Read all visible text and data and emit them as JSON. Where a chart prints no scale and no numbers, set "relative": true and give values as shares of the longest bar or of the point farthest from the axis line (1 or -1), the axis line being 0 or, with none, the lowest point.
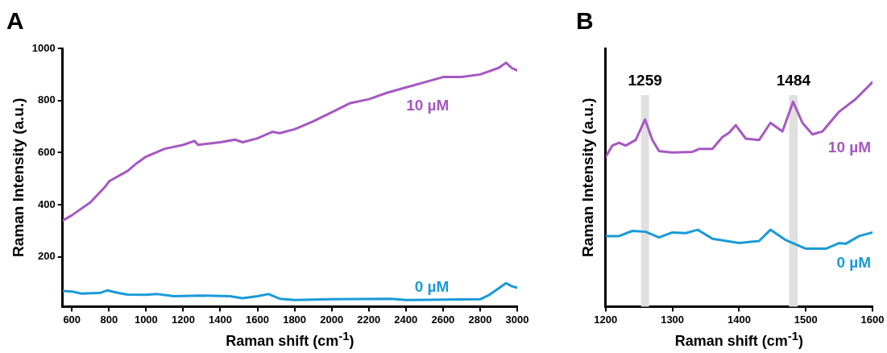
{
  "chart_data": [
    {
      "type": "line",
      "title": "A",
      "xlabel": "Raman shift (cm$^{-1}$)",
      "ylabel": "Raman Intensity (a.u.)",
      "xlim": [
        550,
        3000
      ],
      "xticks": [
        600,
        800,
        1000,
        1200,
        1400,
        1600,
        1800,
        2000,
        2200,
        2400,
        2600,
        2800,
        3000
      ],
      "ylim": [
        10,
        1000
      ],
      "yticks": [
        200,
        400,
        600,
        800,
        1000
      ],
      "grid": false,
      "legend": false,
      "marker": "none",
      "line_style": "solid",
      "series": [
        {
          "name": "10 µM",
          "color": "#a658c2",
          "x": [
            550,
            600,
            700,
            780,
            800,
            900,
            950,
            1000,
            1100,
            1200,
            1260,
            1280,
            1400,
            1480,
            1520,
            1600,
            1680,
            1720,
            1800,
            1900,
            2000,
            2100,
            2200,
            2300,
            2400,
            2500,
            2600,
            2700,
            2800,
            2900,
            2940,
            2970,
            3000
          ],
          "values": [
            340,
            360,
            410,
            470,
            490,
            530,
            560,
            585,
            615,
            630,
            645,
            630,
            640,
            650,
            640,
            655,
            680,
            675,
            690,
            720,
            755,
            790,
            805,
            830,
            850,
            870,
            890,
            890,
            900,
            925,
            945,
            925,
            915
          ]
        },
        {
          "name": "0 µM",
          "color": "#1a9ad8",
          "x": [
            550,
            600,
            650,
            750,
            790,
            850,
            900,
            1000,
            1060,
            1150,
            1300,
            1450,
            1520,
            1600,
            1660,
            1720,
            1800,
            2000,
            2320,
            2400,
            2800,
            2850,
            2900,
            2940,
            2970,
            3000
          ],
          "values": [
            70,
            68,
            60,
            62,
            72,
            62,
            56,
            55,
            58,
            50,
            52,
            50,
            42,
            50,
            58,
            40,
            35,
            38,
            40,
            35,
            38,
            55,
            80,
            100,
            88,
            82
          ]
        }
      ]
    },
    {
      "type": "line",
      "title": "B",
      "xlabel": "Raman shift (cm$^{-1}$)",
      "ylabel": "Raman Intensity (a.u.)",
      "relative": true,
      "xlim": [
        1200,
        1600
      ],
      "xticks": [
        1200,
        1300,
        1400,
        1500,
        1600
      ],
      "grid": false,
      "legend": false,
      "marker": "none",
      "line_style": "solid",
      "bands": [
        {
          "axis": "x",
          "from": 1253,
          "to": 1265,
          "label": "1259",
          "color": "#e0e0e0"
        },
        {
          "axis": "x",
          "from": 1475,
          "to": 1488,
          "label": "1484",
          "color": "#e0e0e0"
        }
      ],
      "series": [
        {
          "name": "10 µM",
          "color": "#a658c2",
          "x": [
            1200,
            1210,
            1220,
            1230,
            1245,
            1259,
            1270,
            1280,
            1300,
            1330,
            1340,
            1360,
            1375,
            1385,
            1395,
            1410,
            1430,
            1447,
            1465,
            1481,
            1495,
            1510,
            1525,
            1550,
            1575,
            1600
          ],
          "values": [
            0.667,
            0.717,
            0.73,
            0.717,
            0.742,
            0.833,
            0.742,
            0.692,
            0.686,
            0.689,
            0.702,
            0.702,
            0.755,
            0.774,
            0.808,
            0.748,
            0.742,
            0.818,
            0.78,
            0.912,
            0.818,
            0.767,
            0.78,
            0.868,
            0.925,
            1
          ]
        },
        {
          "name": "0 µM",
          "color": "#1a9ad8",
          "x": [
            1200,
            1220,
            1240,
            1260,
            1280,
            1300,
            1320,
            1338,
            1360,
            1400,
            1430,
            1447,
            1470,
            1500,
            1530,
            1550,
            1560,
            1580,
            1600
          ],
          "values": [
            0.314,
            0.314,
            0.337,
            0.333,
            0.308,
            0.33,
            0.327,
            0.342,
            0.302,
            0.283,
            0.292,
            0.342,
            0.296,
            0.258,
            0.258,
            0.283,
            0.28,
            0.314,
            0.33
          ]
        }
      ]
    }
  ]
}
